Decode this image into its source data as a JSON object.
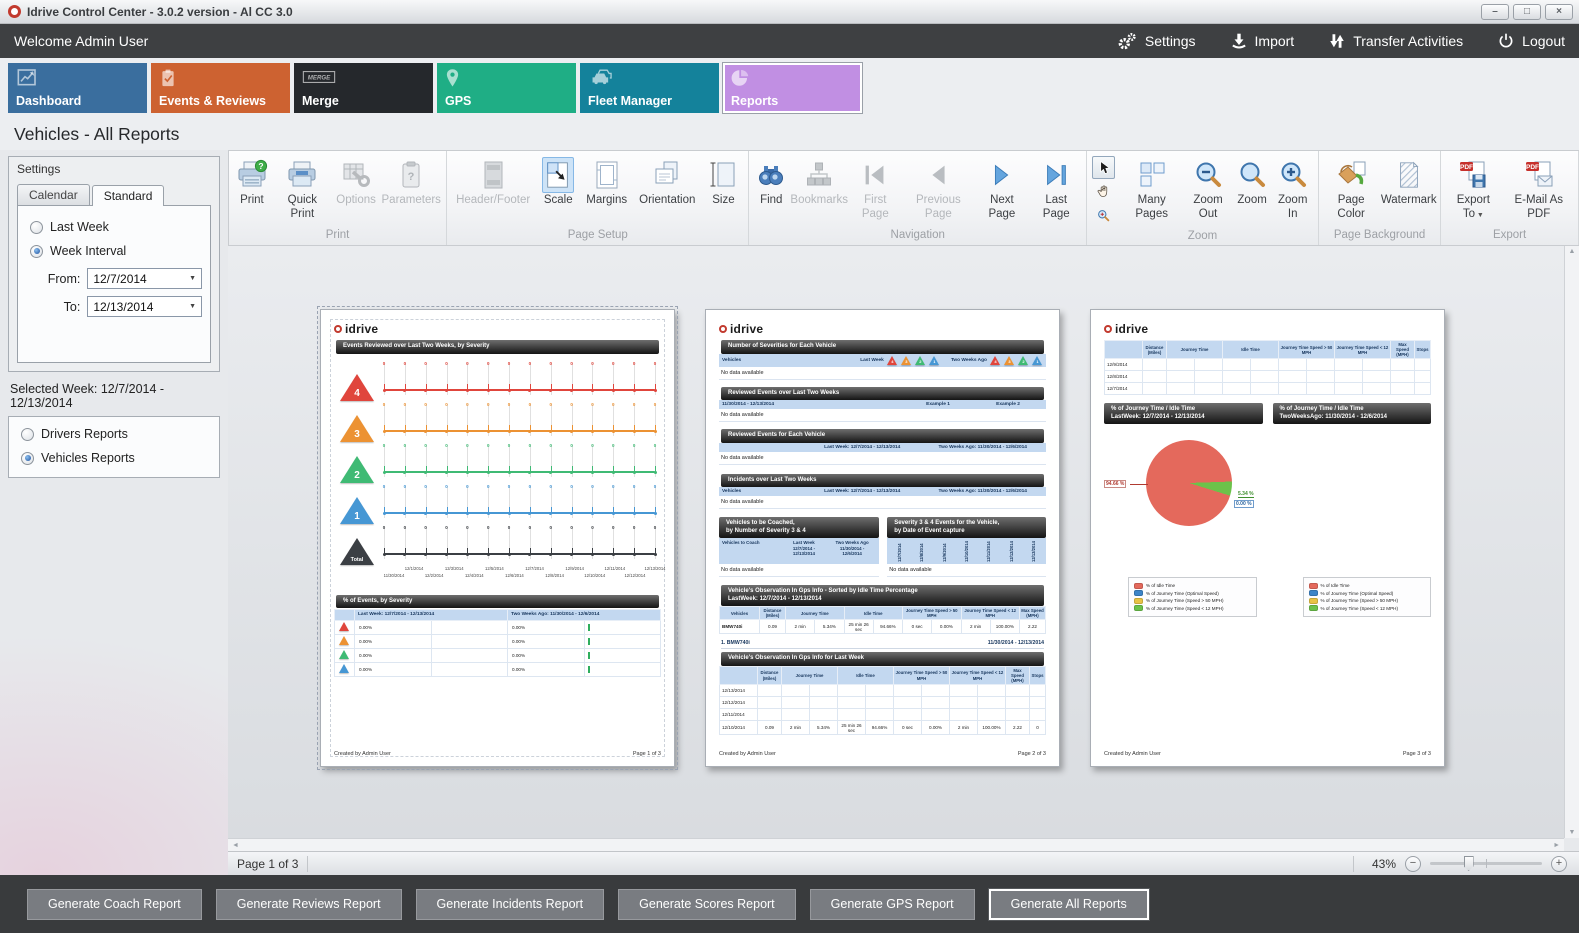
{
  "window": {
    "title": "Idrive Control Center - 3.0.2 version - Al CC 3.0",
    "controls": {
      "minimize": "–",
      "maximize": "□",
      "close": "×"
    }
  },
  "icons": {
    "chevron_down": "▼",
    "pdf_badge": "PDF",
    "merge_badge": "MERGE",
    "question_badge": "?",
    "minus_glyph": "−",
    "plus_glyph": "+",
    "hscroll_left": "◄",
    "hscroll_right": "►",
    "vscroll_up": "▲",
    "vscroll_down": "▼",
    "prev_glyph": "◀",
    "next_glyph": "▶"
  },
  "topbar": {
    "welcome": "Welcome Admin User",
    "actions": [
      {
        "label": "Settings",
        "icon": "settings-gears"
      },
      {
        "label": "Import",
        "icon": "import"
      },
      {
        "label": "Transfer Activities",
        "icon": "transfer"
      },
      {
        "label": "Logout",
        "icon": "power"
      }
    ]
  },
  "tabs": [
    {
      "label": "Dashboard",
      "color": "#3a6e9e",
      "icon": "dashboard-chart",
      "selected": false
    },
    {
      "label": "Events & Reviews",
      "color": "#cd6231",
      "icon": "clipboard-check",
      "selected": false
    },
    {
      "label": "Merge",
      "color": "#25282c",
      "icon": "merge-badge",
      "selected": false
    },
    {
      "label": "GPS",
      "color": "#1fae85",
      "icon": "map-pin",
      "selected": false
    },
    {
      "label": "Fleet Manager",
      "color": "#14829b",
      "icon": "fleet-cars",
      "selected": false
    },
    {
      "label": "Reports",
      "color": "#c18fe3",
      "icon": "pie-chart",
      "selected": true
    }
  ],
  "page_title": "Vehicles - All Reports",
  "sidebar": {
    "header": "Settings",
    "tabs": [
      "Calendar",
      "Standard"
    ],
    "week_options": [
      {
        "label": "Last Week",
        "checked": false
      },
      {
        "label": "Week Interval",
        "checked": true
      }
    ],
    "from_label": "From:",
    "from_value": "12/7/2014",
    "to_label": "To:",
    "to_value": "12/13/2014",
    "selected_week_label": "Selected Week:",
    "selected_week_value": "12/7/2014 - 12/13/2014",
    "report_options": [
      {
        "label": "Drivers Reports",
        "checked": false
      },
      {
        "label": "Vehicles Reports",
        "checked": true
      }
    ]
  },
  "ribbon": {
    "groups": [
      {
        "label": "Print",
        "items": [
          {
            "label": "Print",
            "icon": "print",
            "state": "normal"
          },
          {
            "label": "Quick Print",
            "icon": "quick-print",
            "state": "normal"
          },
          {
            "label": "Options",
            "icon": "options",
            "state": "disabled"
          },
          {
            "label": "Parameters",
            "icon": "parameters",
            "state": "disabled"
          }
        ]
      },
      {
        "label": "Page Setup",
        "items": [
          {
            "label": "Header/Footer",
            "icon": "header-footer",
            "state": "disabled"
          },
          {
            "label": "Scale",
            "icon": "scale",
            "state": "active"
          },
          {
            "label": "Margins",
            "icon": "margins",
            "state": "normal"
          },
          {
            "label": "Orientation",
            "icon": "orientation",
            "state": "normal"
          },
          {
            "label": "Size",
            "icon": "size",
            "state": "normal"
          }
        ]
      },
      {
        "label": "Navigation",
        "items": [
          {
            "label": "Find",
            "icon": "find",
            "state": "normal"
          },
          {
            "label": "Bookmarks",
            "icon": "bookmarks",
            "state": "disabled"
          },
          {
            "label": "First Page",
            "icon": "first-page",
            "state": "disabled"
          },
          {
            "label": "Previous Page",
            "icon": "prev-page",
            "state": "disabled"
          },
          {
            "label": "Next Page",
            "icon": "next-page",
            "state": "normal"
          },
          {
            "label": "Last Page",
            "icon": "last-page",
            "state": "normal"
          }
        ]
      },
      {
        "label": "Zoom",
        "tools": [
          {
            "name": "pointer",
            "selected": true
          },
          {
            "name": "hand",
            "selected": false
          },
          {
            "name": "zoom-region",
            "selected": false
          }
        ],
        "items": [
          {
            "label": "Many Pages",
            "icon": "many-pages",
            "state": "normal"
          },
          {
            "label": "Zoom Out",
            "icon": "zoom-out",
            "state": "normal"
          },
          {
            "label": "Zoom",
            "icon": "zoom",
            "state": "normal"
          },
          {
            "label": "Zoom In",
            "icon": "zoom-in",
            "state": "normal"
          }
        ]
      },
      {
        "label": "Page Background",
        "items": [
          {
            "label": "Page Color",
            "icon": "page-color",
            "state": "normal"
          },
          {
            "label": "Watermark",
            "icon": "watermark",
            "state": "normal"
          }
        ]
      },
      {
        "label": "Export",
        "items": [
          {
            "label": "Export To",
            "icon": "export-to",
            "state": "normal",
            "dropdown": true
          },
          {
            "label": "E-Mail As PDF",
            "icon": "email-pdf",
            "state": "normal"
          }
        ]
      }
    ]
  },
  "chart_data": [
    {
      "type": "line",
      "title": "Events Reviewed over Last Two Weeks, by Severity",
      "x": [
        "11/30/2014",
        "12/1/2014",
        "12/2/2014",
        "12/3/2014",
        "12/4/2014",
        "12/5/2014",
        "12/6/2014",
        "12/7/2014",
        "12/8/2014",
        "12/9/2014",
        "12/10/2014",
        "12/11/2014",
        "12/12/2014",
        "12/13/2014"
      ],
      "series": [
        {
          "name": "4",
          "color": "#e0453c",
          "values": [
            0,
            0,
            0,
            0,
            0,
            0,
            0,
            0,
            0,
            0,
            0,
            0,
            0,
            0
          ]
        },
        {
          "name": "3",
          "color": "#ec9233",
          "values": [
            0,
            0,
            0,
            0,
            0,
            0,
            0,
            0,
            0,
            0,
            0,
            0,
            0,
            0
          ]
        },
        {
          "name": "2",
          "color": "#3fba74",
          "values": [
            0,
            0,
            0,
            0,
            0,
            0,
            0,
            0,
            0,
            0,
            0,
            0,
            0,
            0
          ]
        },
        {
          "name": "1",
          "color": "#4697d4",
          "values": [
            0,
            0,
            0,
            0,
            0,
            0,
            0,
            0,
            0,
            0,
            0,
            0,
            0,
            0
          ]
        },
        {
          "name": "Total",
          "color": "#3b3f44",
          "values": [
            0,
            0,
            0,
            0,
            0,
            0,
            0,
            0,
            0,
            0,
            0,
            0,
            0,
            0
          ]
        }
      ]
    },
    {
      "type": "pie",
      "title": "% of Journey Time / Idle Time - Last Week",
      "slices": [
        {
          "label": "% of Idle Time",
          "value": 94.66,
          "color": "#e4695c",
          "text": "94.66 %"
        },
        {
          "label": "% of Journey Time (Speed < 12 MPH)",
          "value": 5.34,
          "color": "#6cc24a",
          "text": "5.34 %"
        },
        {
          "label": "% of Journey Time (Optimal Speed)",
          "value": 0,
          "color": "#3d85c8",
          "text": "0.00 %"
        }
      ],
      "legend_position": "bottom"
    }
  ],
  "preview": {
    "logo_text": "idrive",
    "created_by": "Created by Admin User",
    "no_data": "No data available",
    "vehicles_label": "Vehicles",
    "gps_cols": [
      "Distance (Miles)",
      "Journey Time",
      "Idle Time",
      "Journey Time Speed > 50 MPH",
      "Journey Time Speed < 12 MPH",
      "Max Speed (MPH)",
      "Stops"
    ],
    "page1": {
      "banner": "Events Reviewed over Last Two Weeks, by Severity",
      "banner2": "% of Events, by Severity",
      "table": {
        "col_lw": "Last Week: 12/7/2014 - 12/13/2014",
        "col_tw": "Two Weeks Ago: 11/30/2014 - 12/6/2014",
        "rows": [
          {
            "lw": "0.00%",
            "tw": "0.00%"
          },
          {
            "lw": "0.00%",
            "tw": "0.00%"
          },
          {
            "lw": "0.00%",
            "tw": "0.00%"
          },
          {
            "lw": "0.00%",
            "tw": "0.00%"
          }
        ]
      },
      "footer_right": "Page 1 of 3"
    },
    "page2": {
      "s1": {
        "title": "Number of Severities for Each Vehicle",
        "lw": "Last Week",
        "tw": "Two Weeks Ago",
        "severities": [
          "4",
          "3",
          "2",
          "1"
        ]
      },
      "s2": {
        "title": "Reviewed Events over Last Two Weeks",
        "range": "11/30/2014 - 12/13/2014",
        "ex1": "Example 1",
        "ex2": "Example 2"
      },
      "s3": {
        "title": "Reviewed Events for Each Vehicle",
        "lw": "Last Week: 12/7/2014 - 12/13/2014",
        "tw": "Two Weeks Ago: 11/30/2014 - 12/6/2014"
      },
      "s4": {
        "title": "Incidents over Last Two Weeks",
        "lw": "Last Week: 12/7/2014 - 12/13/2014",
        "tw": "Two Weeks Ago: 11/30/2014 - 12/6/2014"
      },
      "s5a": {
        "title": "Vehicles to be Coached,\nby Number of Severity 3 & 4",
        "cols": [
          "Vehicles to Coach",
          "Last Week\n12/7/2014 -\n12/13/2014",
          "Two Weeks Ago\n11/30/2014 -\n12/6/2014"
        ]
      },
      "s5b": {
        "title": "Severity 3 & 4 Events for the Vehicle,\nby Date of Event capture",
        "dates": [
          "12/7/2014",
          "12/8/2014",
          "12/9/2014",
          "12/10/2014",
          "12/11/2014",
          "12/12/2014",
          "12/13/2014"
        ]
      },
      "s6": {
        "title": "Vehicle's Observation In Gps Info - Sorted by Idle Time Percentage\nLastWeek: 12/7/2014 - 12/13/2014",
        "row_label": "BMW740i",
        "values": [
          "0.09",
          "2 min",
          "5.34%",
          "25 min 26 sec",
          "94.66%",
          "0 sec",
          "0.00%",
          "2 min",
          "100.00%",
          "2.22"
        ]
      },
      "veh_line": {
        "left": "1. BMW740i",
        "right": "11/30/2014 - 12/13/2014"
      },
      "s7": {
        "title": "Vehicle's Observation In Gps Info for Last Week",
        "rows": [
          {
            "date": "12/13/2014",
            "values": []
          },
          {
            "date": "12/12/2014",
            "values": []
          },
          {
            "date": "12/11/2014",
            "values": []
          },
          {
            "date": "12/10/2014",
            "values": [
              "0.09",
              "2 min",
              "5.34%",
              "25 min 26 sec",
              "94.66%",
              "0 sec",
              "0.00%",
              "2 min",
              "100.00%",
              "2.22",
              "0"
            ]
          }
        ]
      },
      "footer_right": "Page 2 of 3"
    },
    "page3": {
      "table_rows": [
        "12/9/2014",
        "12/8/2014",
        "12/7/2014"
      ],
      "banner_left": "% of Journey Time / Idle Time\nLastWeek: 12/7/2014 - 12/13/2014",
      "banner_right": "% of Journey Time / Idle Time\nTwoWeeksAgo: 11/30/2014 - 12/6/2014",
      "legend": [
        {
          "color": "#e4695c",
          "label": "% of Idle Time"
        },
        {
          "color": "#3d85c8",
          "label": "% of Journey Time (Optimal Speed)"
        },
        {
          "color": "#e8c345",
          "label": "% of Journey Time (Speed > 50 MPH)"
        },
        {
          "color": "#6cc24a",
          "label": "% of Journey Time (Speed < 12 MPH)"
        }
      ],
      "footer_right": "Page 3 of 3"
    }
  },
  "statusbar": {
    "page_indicator": "Page 1 of 3",
    "zoom_percent": "43%"
  },
  "footer": {
    "buttons": [
      "Generate Coach Report",
      "Generate Reviews Report",
      "Generate Incidents Report",
      "Generate Scores Report",
      "Generate GPS Report",
      "Generate All Reports"
    ],
    "active_index": 5
  }
}
